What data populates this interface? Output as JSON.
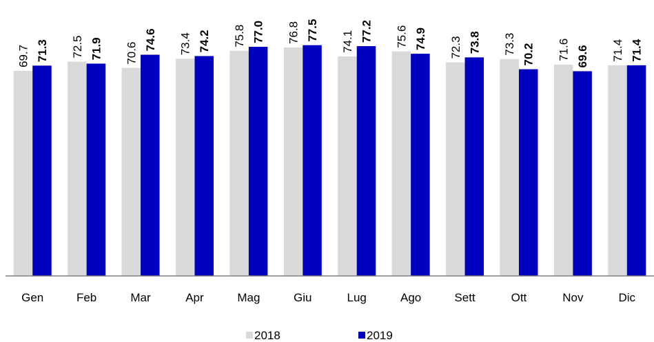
{
  "chart_data": {
    "type": "bar",
    "categories": [
      "Gen",
      "Feb",
      "Mar",
      "Apr",
      "Mag",
      "Giu",
      "Lug",
      "Ago",
      "Sett",
      "Ott",
      "Nov",
      "Dic"
    ],
    "series": [
      {
        "name": "2018",
        "color": "#d9d9d9",
        "values": [
          69.7,
          72.5,
          70.6,
          73.4,
          75.8,
          76.8,
          74.1,
          75.6,
          72.3,
          73.3,
          71.6,
          71.4
        ]
      },
      {
        "name": "2019",
        "color": "#0000c0",
        "values": [
          71.3,
          71.9,
          74.6,
          74.2,
          77,
          77.5,
          77.2,
          74.9,
          73.8,
          70.2,
          69.6,
          71.4
        ],
        "value_labels": [
          "71.3",
          "71.9",
          "74.6",
          "74.2",
          "77.0",
          "77.5",
          "77.2",
          "74.9",
          "73.8",
          "70.2",
          "69.6",
          "71.4"
        ]
      }
    ],
    "ylim": [
      7.5,
      91.2
    ]
  }
}
